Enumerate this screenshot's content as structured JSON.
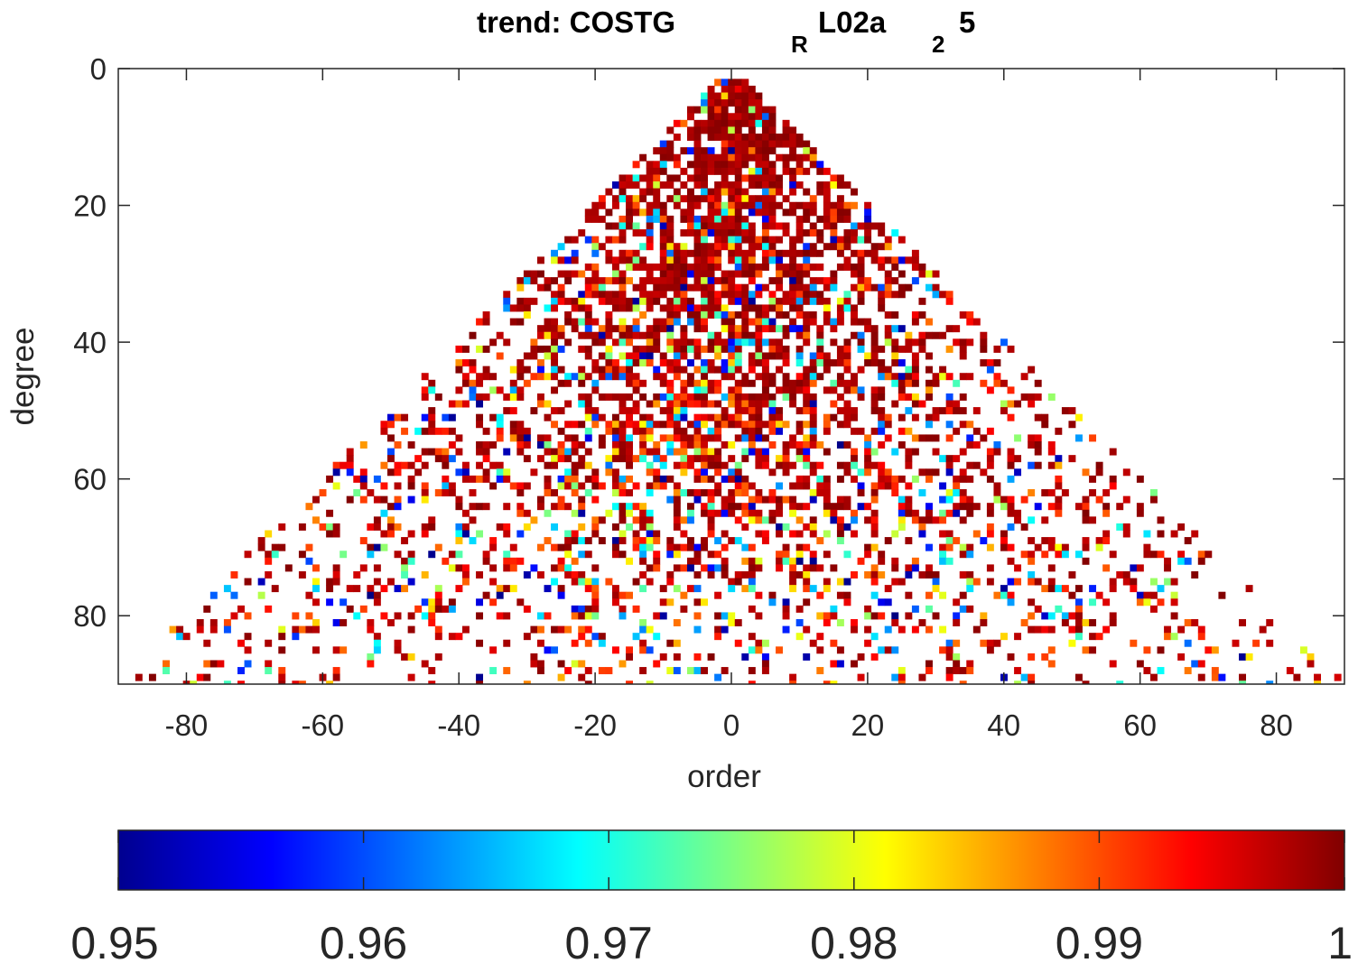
{
  "chart_data": {
    "type": "heatmap",
    "title": {
      "main": "trend: COSTG",
      "sub1": "R",
      "mid": "L02a",
      "sub2": "2",
      "end": "5"
    },
    "xlabel": "order",
    "ylabel": "degree",
    "xlim": [
      -90,
      90
    ],
    "ylim": [
      0,
      90
    ],
    "y_reversed": true,
    "grid": false,
    "x_ticks": [
      -80,
      -60,
      -40,
      -20,
      0,
      20,
      40,
      60,
      80
    ],
    "x_tick_labels": [
      "-80",
      "-60",
      "-40",
      "-20",
      "0",
      "20",
      "40",
      "60",
      "80"
    ],
    "y_ticks": [
      0,
      20,
      40,
      60,
      80
    ],
    "y_tick_labels": [
      "0",
      "20",
      "40",
      "60",
      "80"
    ],
    "max_degree": 90,
    "colormap": "jet",
    "clim": [
      0.95,
      1.0
    ],
    "colorbar": {
      "location": "bottom",
      "ticks": [
        0.95,
        0.96,
        0.97,
        0.98,
        0.99,
        1.0
      ],
      "tick_labels": [
        "0.95",
        "0.96",
        "0.97",
        "0.98",
        "0.99",
        "1"
      ]
    },
    "density_profile": [
      {
        "degree": 0,
        "center": 0.93,
        "edge": 0.85
      },
      {
        "degree": 20,
        "center": 0.9,
        "edge": 0.55
      },
      {
        "degree": 40,
        "center": 0.85,
        "edge": 0.28
      },
      {
        "degree": 60,
        "center": 0.6,
        "edge": 0.22
      },
      {
        "degree": 75,
        "center": 0.35,
        "edge": 0.22
      },
      {
        "degree": 90,
        "center": 0.2,
        "edge": 0.12
      }
    ],
    "value_mix": [
      {
        "degree": 0,
        "high": 0.85
      },
      {
        "degree": 40,
        "high": 0.6
      },
      {
        "degree": 90,
        "high": 0.3
      }
    ]
  },
  "colors": {
    "axis": "#262626",
    "background": "#ffffff"
  }
}
